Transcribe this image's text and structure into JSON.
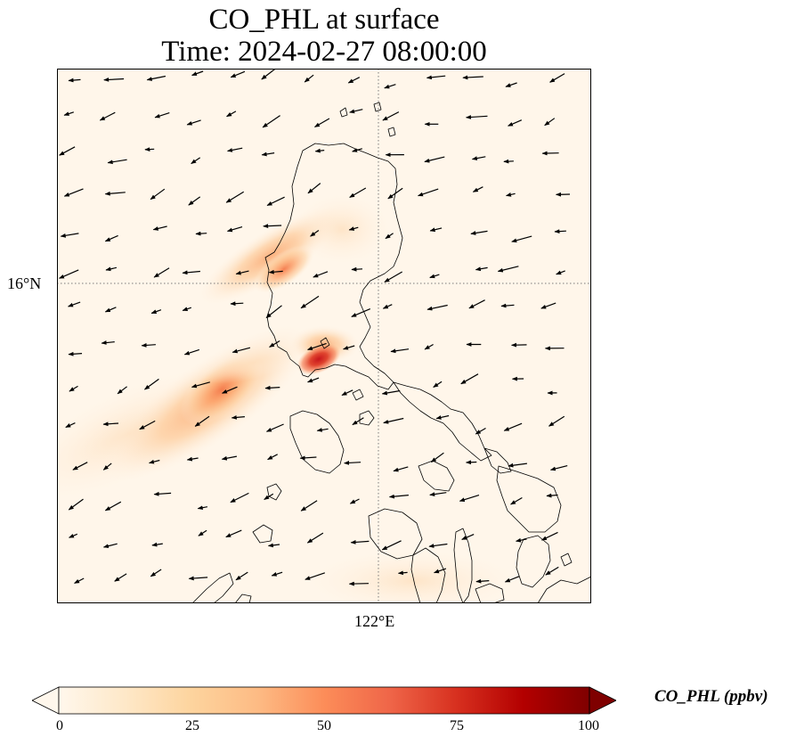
{
  "title": {
    "line1": "CO_PHL at surface",
    "line2": "Time: 2024-02-27 08:00:00"
  },
  "axes": {
    "lat_tick_label": "16°N",
    "lon_tick_label": "122°E",
    "gridlines": true
  },
  "colorbar": {
    "label": "CO_PHL (ppbv)",
    "ticks": [
      "0",
      "25",
      "50",
      "75",
      "100"
    ],
    "range": [
      0,
      100
    ],
    "extend": "both",
    "colormap": "OrRd",
    "colors": [
      "#fff7ec",
      "#fee8c8",
      "#fdd49e",
      "#fdbb84",
      "#fc8d59",
      "#ef6548",
      "#d7301f",
      "#b30000",
      "#7f0000"
    ]
  },
  "map": {
    "background_color": "#fff6ea",
    "coastline_color": "#000000",
    "wind_vectors": true
  }
}
